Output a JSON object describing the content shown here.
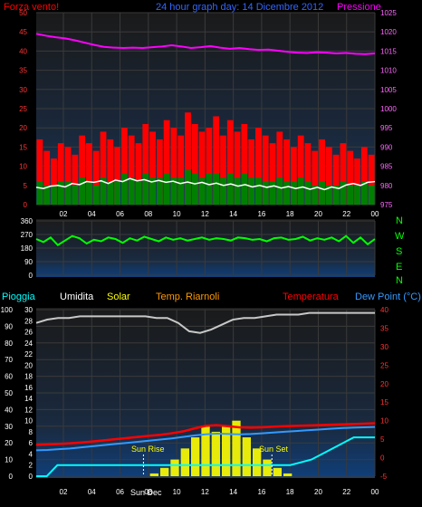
{
  "colors": {
    "background": "#000000",
    "plot_bg_top": "#1a1a1a",
    "plot_bg_bottom": "#0f3f7a",
    "grid": "#3a3a3a",
    "wind_gust": "#ff0000",
    "wind_avg": "#008000",
    "wind_line": "#ffffff",
    "pressure": "#ff00ff",
    "direction": "#00ff00",
    "humidity": "#c8c8c8",
    "solar": "#ffff00",
    "temperature": "#ff0000",
    "dew_point": "#3399ff",
    "rain": "#00ffff",
    "label_blue": "#3366ff",
    "axis_text": "#ffffff"
  },
  "headers": {
    "wind_label": "Forza vento!",
    "title": "24 hour graph day: 14 Dicembre 2012",
    "pressure_label": "Pressione",
    "rain_label": "Pioggia",
    "humidity_label": "Umidita",
    "solar_label": "Solar",
    "indoor_temp_label": "Temp. Riarnoli",
    "temp_label": "Temperatura",
    "dew_label": "Dew Point (°C)",
    "sunrise_label": "Sun Rise",
    "sunset_label": "Sun Set",
    "sun_dec_label": "Sun Dec"
  },
  "compass": [
    "N",
    "W",
    "S",
    "E",
    "N"
  ],
  "chart_data": [
    {
      "type": "bar",
      "panel": "wind",
      "title": "Forza vento!",
      "x_ticks": [
        "02",
        "04",
        "06",
        "08",
        "10",
        "12",
        "14",
        "16",
        "18",
        "20",
        "22",
        "00"
      ],
      "y_left_ticks": [
        0,
        5,
        10,
        15,
        20,
        25,
        30,
        35,
        40,
        45,
        50
      ],
      "y_right_ticks": [
        975,
        980,
        985,
        990,
        995,
        1000,
        1005,
        1010,
        1015,
        1020,
        1025
      ],
      "ylim_left": [
        0,
        50
      ],
      "ylim_right": [
        975,
        1025
      ],
      "series": [
        {
          "name": "gust",
          "values": [
            17,
            14,
            12,
            16,
            15,
            13,
            18,
            16,
            14,
            19,
            17,
            15,
            20,
            18,
            16,
            21,
            19,
            17,
            22,
            20,
            18,
            24,
            21,
            19,
            20,
            23,
            18,
            22,
            19,
            21,
            17,
            20,
            18,
            16,
            19,
            17,
            15,
            18,
            16,
            14,
            17,
            15,
            13,
            16,
            14,
            12,
            15,
            13
          ]
        },
        {
          "name": "average",
          "values": [
            6,
            5,
            5,
            6,
            6,
            5,
            7,
            6,
            5,
            7,
            6,
            6,
            8,
            7,
            6,
            8,
            7,
            7,
            8,
            7,
            7,
            9,
            8,
            7,
            8,
            8,
            7,
            8,
            7,
            8,
            7,
            7,
            6,
            6,
            7,
            6,
            6,
            7,
            6,
            5,
            6,
            5,
            5,
            6,
            5,
            5,
            6,
            5
          ]
        },
        {
          "name": "mean_line",
          "values": [
            4.5,
            4.2,
            4.8,
            5.0,
            4.6,
            5.5,
            5.2,
            6.0,
            5.8,
            6.2,
            5.5,
            6.4,
            6.0,
            6.8,
            6.2,
            6.5,
            5.9,
            6.3,
            5.8,
            6.1,
            5.5,
            5.9,
            5.4,
            5.8,
            5.2,
            5.6,
            5.0,
            5.4,
            4.8,
            5.2,
            4.6,
            5.0,
            4.5,
            4.9,
            4.3,
            4.7,
            4.2,
            4.6,
            4.0,
            4.5,
            3.9,
            4.6,
            4.2,
            5.1,
            5.5,
            5.0,
            5.8,
            6.0
          ]
        },
        {
          "name": "Pressione",
          "values": [
            1019.5,
            1019.0,
            1018.6,
            1018.3,
            1017.8,
            1017.2,
            1016.6,
            1016.1,
            1015.9,
            1015.8,
            1015.9,
            1015.8,
            1016.0,
            1016.2,
            1016.5,
            1016.2,
            1015.8,
            1016.0,
            1016.3,
            1015.9,
            1015.6,
            1015.8,
            1015.5,
            1015.3,
            1015.4,
            1015.1,
            1014.8,
            1014.6,
            1014.5,
            1014.7,
            1014.6,
            1014.4,
            1014.5,
            1014.3,
            1014.2,
            1014.4
          ]
        }
      ]
    },
    {
      "type": "line",
      "panel": "direction",
      "y_ticks": [
        0,
        90,
        180,
        270,
        360
      ],
      "ylim": [
        0,
        360
      ],
      "series": [
        {
          "name": "direction",
          "values": [
            240,
            220,
            250,
            200,
            230,
            260,
            245,
            210,
            235,
            225,
            250,
            240,
            215,
            245,
            230,
            255,
            240,
            225,
            250,
            235,
            245,
            230,
            240,
            250,
            235,
            245,
            240,
            230,
            250,
            245,
            235,
            240,
            225,
            245,
            250,
            235,
            240,
            255,
            230,
            245,
            235,
            250,
            225,
            260,
            215,
            250,
            205,
            240
          ]
        }
      ]
    },
    {
      "type": "line",
      "panel": "thermo",
      "y_left_ticks": [
        0,
        10,
        20,
        30,
        40,
        50,
        60,
        70,
        80,
        90,
        100
      ],
      "y_mid_ticks": [
        0,
        2,
        4,
        6,
        8,
        10,
        12,
        14,
        16,
        18,
        20,
        22,
        24,
        26,
        28,
        30
      ],
      "y_right_ticks": [
        -5,
        0,
        5,
        10,
        15,
        20,
        25,
        30,
        35,
        40
      ],
      "ylim_left": [
        0,
        100
      ],
      "ylim_mid": [
        0,
        30
      ],
      "ylim_right": [
        -5,
        40
      ],
      "x_ticks": [
        "02",
        "04",
        "06",
        "08",
        "10",
        "12",
        "14",
        "16",
        "18",
        "20",
        "22",
        "00"
      ],
      "series": [
        {
          "name": "Umidita",
          "values": [
            92,
            94,
            95,
            95,
            96,
            96,
            96,
            96,
            96,
            96,
            96,
            95,
            95,
            92,
            87,
            86,
            88,
            91,
            94,
            95,
            95,
            96,
            97,
            97,
            97,
            98,
            98,
            98,
            98,
            98,
            98,
            98
          ]
        },
        {
          "name": "Solar",
          "values": [
            0,
            0,
            0,
            0,
            0,
            0,
            0,
            0,
            0,
            0,
            0,
            0.5,
            1.5,
            3,
            5,
            7,
            9,
            8,
            9,
            10,
            7,
            5,
            3,
            1.5,
            0.5,
            0,
            0,
            0,
            0,
            0,
            0,
            0,
            0
          ]
        },
        {
          "name": "Temperatura",
          "values": [
            3.5,
            3.6,
            3.7,
            3.9,
            4.1,
            4.4,
            4.7,
            5.0,
            5.3,
            5.6,
            5.9,
            6.2,
            6.6,
            7.1,
            7.9,
            8.6,
            8.8,
            8.5,
            8.2,
            8.1,
            8.2,
            8.4,
            8.5,
            8.6,
            8.7,
            8.8,
            8.9,
            9.0,
            9.1,
            9.2,
            9.3
          ]
        },
        {
          "name": "Dew Point",
          "values": [
            2.0,
            2.1,
            2.3,
            2.5,
            2.8,
            3.1,
            3.4,
            3.7,
            4.0,
            4.3,
            4.6,
            4.9,
            5.2,
            5.6,
            6.0,
            6.3,
            6.5,
            6.4,
            6.3,
            6.4,
            6.6,
            6.8,
            7.0,
            7.2,
            7.4,
            7.6,
            7.8,
            8.0,
            8.1,
            8.2,
            8.3
          ]
        },
        {
          "name": "Pioggia",
          "values": [
            0,
            0,
            2,
            2,
            2,
            2,
            2,
            2,
            2,
            2,
            2,
            2,
            2,
            2,
            2,
            2,
            2,
            2,
            2,
            2,
            2,
            2,
            2,
            2,
            2,
            2.5,
            3,
            4,
            5,
            6,
            7,
            7,
            7
          ]
        }
      ],
      "sunrise_hour": 7.6,
      "sunset_hour": 16.7
    }
  ]
}
